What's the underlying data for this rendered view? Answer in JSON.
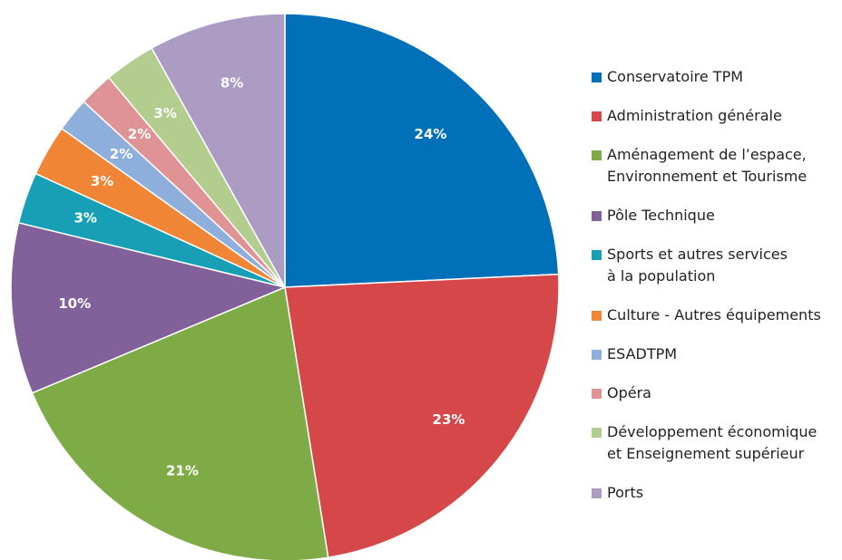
{
  "chart_data": {
    "type": "pie",
    "categories": [
      "Conservatoire TPM",
      "Administration générale",
      "Aménagement de l’espace,\nEnvironnement et Tourisme",
      "Pôle Technique",
      "Sports et autres services\nà la population",
      "Culture - Autres équipements",
      "ESADTPM",
      "Opéra",
      "Développement économique\net Enseignement supérieur",
      "Ports"
    ],
    "values": [
      24,
      23,
      21,
      10,
      3,
      3,
      2,
      2,
      3,
      8
    ],
    "value_labels": [
      "24%",
      "23%",
      "21%",
      "10%",
      "3%",
      "3%",
      "2%",
      "2%",
      "3%",
      "8%"
    ],
    "colors": [
      "#0070b8",
      "#d6474a",
      "#7fab47",
      "#82609a",
      "#17a0b5",
      "#ef8535",
      "#8eaedb",
      "#e09394",
      "#b3cd8f",
      "#ac9cc3"
    ],
    "legend": "right"
  }
}
